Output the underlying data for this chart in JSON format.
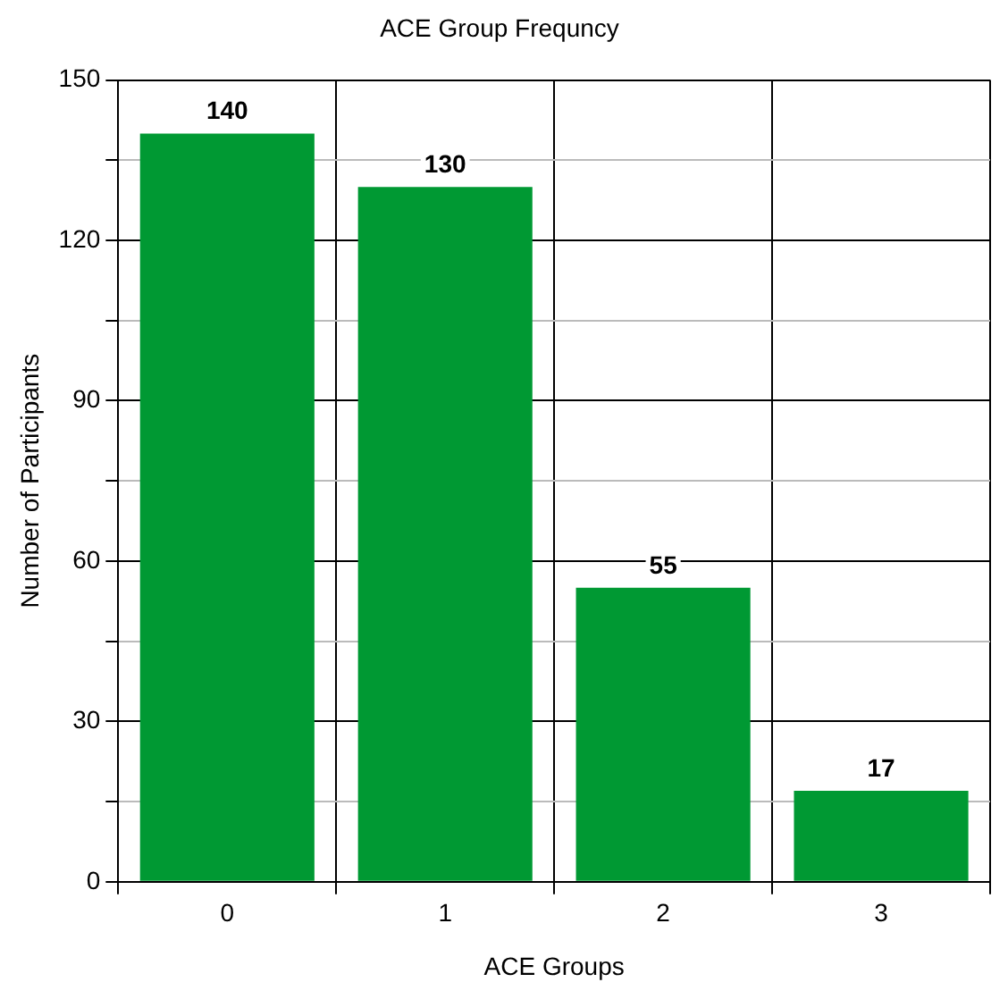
{
  "chart_data": {
    "type": "bar",
    "title": "ACE Group Frequncy",
    "xlabel": "ACE Groups",
    "ylabel": "Number of Participants",
    "categories": [
      "0",
      "1",
      "2",
      "3"
    ],
    "values": [
      140,
      130,
      55,
      17
    ],
    "color": "#009933",
    "ylim": [
      0,
      150
    ],
    "yticks": [
      0,
      {
        "value": 15,
        "label": null
      },
      30,
      {
        "value": 45,
        "label": null
      },
      60,
      {
        "value": 75,
        "label": null
      },
      90,
      {
        "value": 105,
        "label": null
      },
      120,
      {
        "value": 135,
        "label": null
      },
      150
    ],
    "grid": true,
    "data_labels": true,
    "legend": false
  }
}
